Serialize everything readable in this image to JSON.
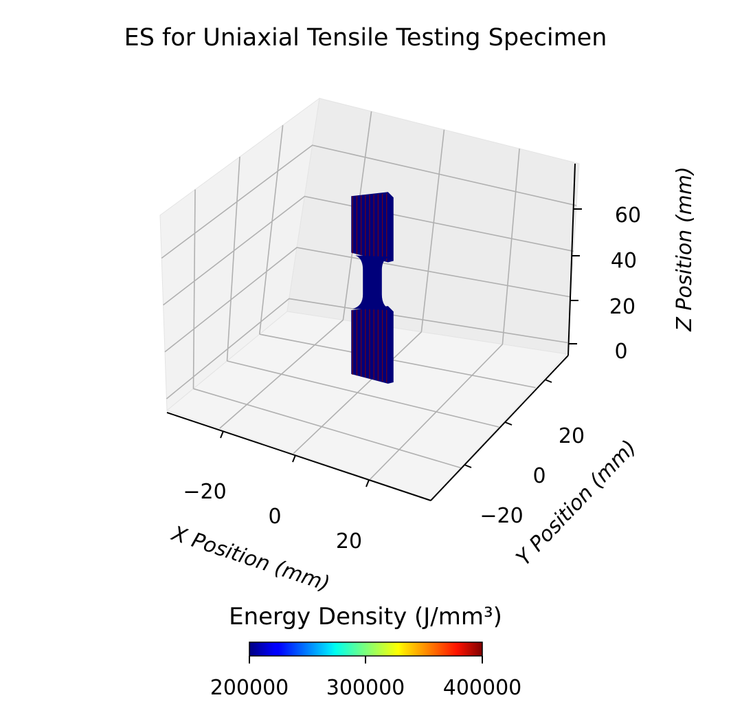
{
  "chart_data": {
    "type": "3d-scatter",
    "title": "ES for Uniaxial Tensile Testing Specimen",
    "xlabel": "X Position (mm)",
    "ylabel": "Y Position (mm)",
    "zlabel": "Z Position (mm)",
    "xticks": [
      "−20",
      "0",
      "20"
    ],
    "yticks": [
      "−20",
      "0",
      "20"
    ],
    "zticks": [
      "0",
      "20",
      "40",
      "60"
    ],
    "grid": true,
    "colorbar": {
      "label": "Energy Density (J/mm³)",
      "ticks": [
        "200000",
        "300000",
        "400000"
      ],
      "range": [
        200000,
        400000
      ],
      "colormap": "jet",
      "placement": "bottom"
    },
    "specimen": {
      "grip_width_mm": 12.5,
      "gauge_width_mm": 6,
      "thickness_mm": 3,
      "height_mm": 75,
      "lower_grip_z_mm": [
        0,
        28
      ],
      "gauge_z_mm": [
        34,
        44
      ],
      "upper_grip_z_mm": [
        50,
        75
      ],
      "base_energy_density": 200000,
      "edge_energy_density": 400000
    },
    "colors": {
      "body": "#00007a",
      "edge": "#8a0000",
      "pane": "#f2f2f2",
      "grid": "#b0b0b0"
    }
  }
}
